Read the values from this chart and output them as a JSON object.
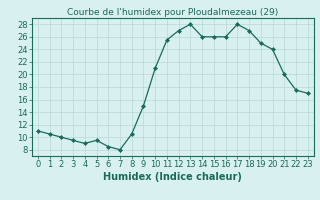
{
  "x": [
    0,
    1,
    2,
    3,
    4,
    5,
    6,
    7,
    8,
    9,
    10,
    11,
    12,
    13,
    14,
    15,
    16,
    17,
    18,
    19,
    20,
    21,
    22,
    23
  ],
  "y": [
    11,
    10.5,
    10,
    9.5,
    9,
    9.5,
    8.5,
    8,
    10.5,
    15,
    21,
    25.5,
    27,
    28,
    26,
    26,
    26,
    28,
    27,
    25,
    24,
    20,
    17.5,
    17
  ],
  "title": "Courbe de l'humidex pour Ploudalmezeau (29)",
  "xlabel": "Humidex (Indice chaleur)",
  "ylabel": "",
  "xlim": [
    -0.5,
    23.5
  ],
  "ylim": [
    7,
    29
  ],
  "yticks": [
    8,
    10,
    12,
    14,
    16,
    18,
    20,
    22,
    24,
    26,
    28
  ],
  "xticks": [
    0,
    1,
    2,
    3,
    4,
    5,
    6,
    7,
    8,
    9,
    10,
    11,
    12,
    13,
    14,
    15,
    16,
    17,
    18,
    19,
    20,
    21,
    22,
    23
  ],
  "line_color": "#1a6b5a",
  "marker": "D",
  "marker_size": 2,
  "bg_color": "#d8f0f0",
  "grid_color": "#b8d8d8",
  "title_fontsize": 6.5,
  "label_fontsize": 7,
  "tick_fontsize": 6
}
